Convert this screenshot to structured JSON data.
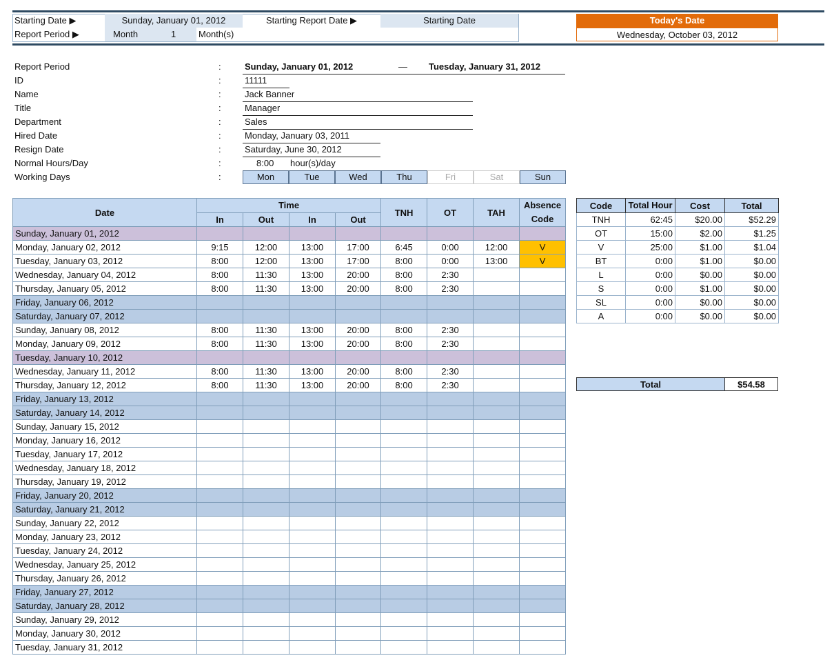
{
  "header": {
    "starting_date_label": "Starting Date ▶",
    "starting_date_value": "Sunday, January 01, 2012",
    "starting_report_date_label": "Starting Report Date ▶",
    "starting_report_date_value": "Starting Date",
    "report_period_label": "Report Period ▶",
    "period_unit": "Month",
    "period_count": "1",
    "period_suffix": "Month(s)",
    "todays_date_label": "Today's Date",
    "todays_date_value": "Wednesday, October 03, 2012"
  },
  "info": {
    "labels": [
      "Report Period",
      "ID",
      "Name",
      "Title",
      "Department",
      "Hired Date",
      "Resign Date",
      "Normal Hours/Day",
      "Working Days"
    ],
    "colon": ":",
    "report_start": "Sunday, January 01, 2012",
    "dash": "—",
    "report_end": "Tuesday, January 31, 2012",
    "id": "11111",
    "name": "Jack Banner",
    "title": "Manager",
    "department": "Sales",
    "hired": "Monday, January 03, 2011",
    "resign": "Saturday, June 30, 2012",
    "hours": "8:00",
    "hours_unit": "hour(s)/day",
    "days": [
      {
        "label": "Mon",
        "on": true
      },
      {
        "label": "Tue",
        "on": true
      },
      {
        "label": "Wed",
        "on": true
      },
      {
        "label": "Thu",
        "on": true
      },
      {
        "label": "Fri",
        "on": false
      },
      {
        "label": "Sat",
        "on": false
      },
      {
        "label": "Sun",
        "on": true
      }
    ]
  },
  "timesheet": {
    "headers": {
      "date": "Date",
      "time": "Time",
      "in": "In",
      "out": "Out",
      "tnh": "TNH",
      "ot": "OT",
      "tah": "TAH",
      "absence": "Absence Code"
    },
    "rows": [
      {
        "date": "Sunday, January 01, 2012",
        "type": "hol",
        "v": []
      },
      {
        "date": "Monday, January 02, 2012",
        "v": [
          "9:15",
          "12:00",
          "13:00",
          "17:00",
          "6:45",
          "0:00",
          "12:00",
          "V"
        ]
      },
      {
        "date": "Tuesday, January 03, 2012",
        "v": [
          "8:00",
          "12:00",
          "13:00",
          "17:00",
          "8:00",
          "0:00",
          "13:00",
          "V"
        ]
      },
      {
        "date": "Wednesday, January 04, 2012",
        "v": [
          "8:00",
          "11:30",
          "13:00",
          "20:00",
          "8:00",
          "2:30",
          "",
          ""
        ]
      },
      {
        "date": "Thursday, January 05, 2012",
        "v": [
          "8:00",
          "11:30",
          "13:00",
          "20:00",
          "8:00",
          "2:30",
          "",
          ""
        ]
      },
      {
        "date": "Friday, January 06, 2012",
        "type": "we",
        "v": []
      },
      {
        "date": "Saturday, January 07, 2012",
        "type": "we",
        "v": []
      },
      {
        "date": "Sunday, January 08, 2012",
        "v": [
          "8:00",
          "11:30",
          "13:00",
          "20:00",
          "8:00",
          "2:30",
          "",
          ""
        ]
      },
      {
        "date": "Monday, January 09, 2012",
        "v": [
          "8:00",
          "11:30",
          "13:00",
          "20:00",
          "8:00",
          "2:30",
          "",
          ""
        ]
      },
      {
        "date": "Tuesday, January 10, 2012",
        "type": "hol",
        "v": []
      },
      {
        "date": "Wednesday, January 11, 2012",
        "v": [
          "8:00",
          "11:30",
          "13:00",
          "20:00",
          "8:00",
          "2:30",
          "",
          ""
        ]
      },
      {
        "date": "Thursday, January 12, 2012",
        "v": [
          "8:00",
          "11:30",
          "13:00",
          "20:00",
          "8:00",
          "2:30",
          "",
          ""
        ]
      },
      {
        "date": "Friday, January 13, 2012",
        "type": "we",
        "v": []
      },
      {
        "date": "Saturday, January 14, 2012",
        "type": "we",
        "v": []
      },
      {
        "date": "Sunday, January 15, 2012",
        "v": []
      },
      {
        "date": "Monday, January 16, 2012",
        "v": []
      },
      {
        "date": "Tuesday, January 17, 2012",
        "v": []
      },
      {
        "date": "Wednesday, January 18, 2012",
        "v": []
      },
      {
        "date": "Thursday, January 19, 2012",
        "v": []
      },
      {
        "date": "Friday, January 20, 2012",
        "type": "we",
        "v": []
      },
      {
        "date": "Saturday, January 21, 2012",
        "type": "we",
        "v": []
      },
      {
        "date": "Sunday, January 22, 2012",
        "v": []
      },
      {
        "date": "Monday, January 23, 2012",
        "v": []
      },
      {
        "date": "Tuesday, January 24, 2012",
        "v": []
      },
      {
        "date": "Wednesday, January 25, 2012",
        "v": []
      },
      {
        "date": "Thursday, January 26, 2012",
        "v": []
      },
      {
        "date": "Friday, January 27, 2012",
        "type": "we",
        "v": []
      },
      {
        "date": "Saturday, January 28, 2012",
        "type": "we",
        "v": []
      },
      {
        "date": "Sunday, January 29, 2012",
        "v": []
      },
      {
        "date": "Monday, January 30, 2012",
        "v": []
      },
      {
        "date": "Tuesday, January 31, 2012",
        "v": []
      }
    ]
  },
  "summary": {
    "headers": [
      "Code",
      "Total Hour",
      "Cost",
      "Total"
    ],
    "rows": [
      [
        "TNH",
        "62:45",
        "$20.00",
        "$52.29"
      ],
      [
        "OT",
        "15:00",
        "$2.00",
        "$1.25"
      ],
      [
        "V",
        "25:00",
        "$1.00",
        "$1.04"
      ],
      [
        "BT",
        "0:00",
        "$1.00",
        "$0.00"
      ],
      [
        "L",
        "0:00",
        "$0.00",
        "$0.00"
      ],
      [
        "S",
        "0:00",
        "$1.00",
        "$0.00"
      ],
      [
        "SL",
        "0:00",
        "$0.00",
        "$0.00"
      ],
      [
        "A",
        "0:00",
        "$0.00",
        "$0.00"
      ]
    ],
    "total_label": "Total",
    "total_value": "$54.58"
  },
  "colors": {
    "band": "#2e4a62",
    "orange": "#e26b0a",
    "header_blue": "#c5d9f1",
    "weekend": "#b8cce4",
    "holiday": "#ccc0da",
    "absence": "#ffc000"
  }
}
